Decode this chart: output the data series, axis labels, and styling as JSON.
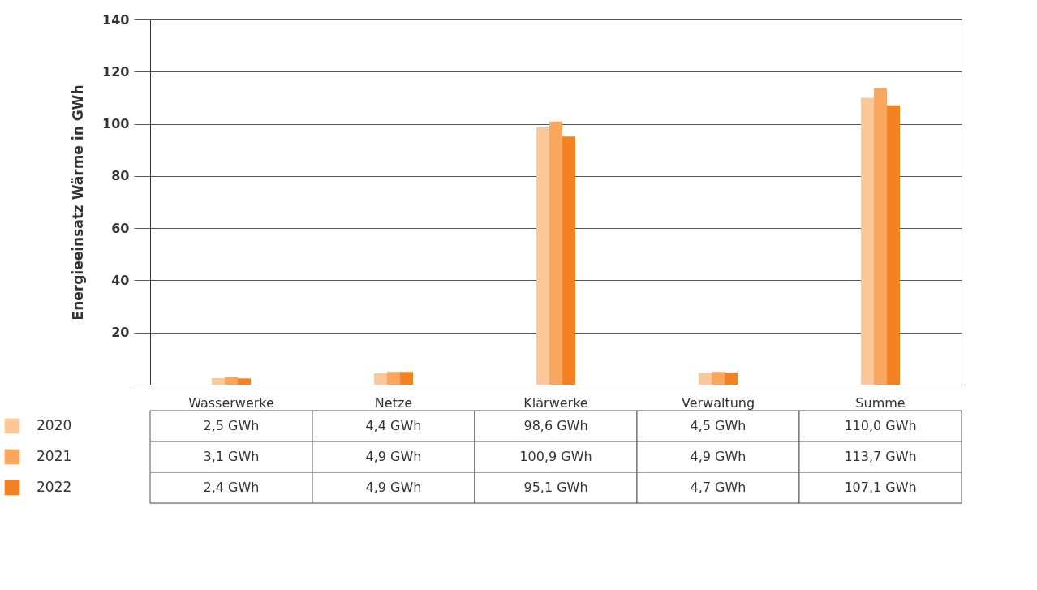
{
  "chart_data": {
    "type": "bar",
    "ylabel": "Energieeinsatz Wärme in GWh",
    "categories": [
      "Wasserwerke",
      "Netze",
      "Klärwerke",
      "Verwaltung",
      "Summe"
    ],
    "series": [
      {
        "name": "2020",
        "color": "#fcc898",
        "values": [
          2.5,
          4.4,
          98.6,
          4.5,
          110.0
        ],
        "value_labels": [
          "2,5 GWh",
          "4,4 GWh",
          "98,6 GWh",
          "4,5 GWh",
          "110,0 GWh"
        ]
      },
      {
        "name": "2021",
        "color": "#f9a65e",
        "values": [
          3.1,
          4.9,
          100.9,
          4.9,
          113.7
        ],
        "value_labels": [
          "3,1 GWh",
          "4,9 GWh",
          "100,9 GWh",
          "4,9 GWh",
          "113,7 GWh"
        ]
      },
      {
        "name": "2022",
        "color": "#f58220",
        "values": [
          2.4,
          4.9,
          95.1,
          4.7,
          107.1
        ],
        "value_labels": [
          "2,4 GWh",
          "4,9 GWh",
          "95,1 GWh",
          "4,7 GWh",
          "107,1 GWh"
        ]
      }
    ],
    "ylim": [
      0,
      140
    ],
    "yticks": [
      {
        "value": 0,
        "label": null
      },
      20,
      40,
      60,
      80,
      100,
      120,
      140
    ],
    "grid": "y",
    "legend": "bottom left"
  }
}
